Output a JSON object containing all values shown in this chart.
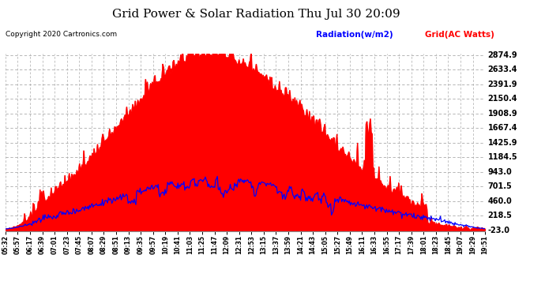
{
  "title": "Grid Power & Solar Radiation Thu Jul 30 20:09",
  "copyright": "Copyright 2020 Cartronics.com",
  "legend_radiation": "Radiation(w/m2)",
  "legend_grid": "Grid(AC Watts)",
  "bg_color": "#ffffff",
  "plot_bg_color": "#ffffff",
  "grid_color": "#aaaaaa",
  "radiation_color": "#0000ff",
  "grid_ac_color": "#ff0000",
  "grid_ac_fill": "#ff0000",
  "yticks": [
    2874.9,
    2633.4,
    2391.9,
    2150.4,
    1908.9,
    1667.4,
    1425.9,
    1184.5,
    943.0,
    701.5,
    460.0,
    218.5,
    -23.0
  ],
  "ylim_min": -23.0,
  "ylim_max": 2874.9,
  "xtick_labels": [
    "05:32",
    "05:57",
    "06:17",
    "06:39",
    "07:01",
    "07:23",
    "07:45",
    "08:07",
    "08:29",
    "08:51",
    "09:13",
    "09:35",
    "09:57",
    "10:19",
    "10:41",
    "11:03",
    "11:25",
    "11:47",
    "12:09",
    "12:31",
    "12:53",
    "13:15",
    "13:37",
    "13:59",
    "14:21",
    "14:43",
    "15:05",
    "15:27",
    "15:49",
    "16:11",
    "16:33",
    "16:55",
    "17:17",
    "17:39",
    "18:01",
    "18:23",
    "18:45",
    "19:07",
    "19:29",
    "19:51"
  ]
}
